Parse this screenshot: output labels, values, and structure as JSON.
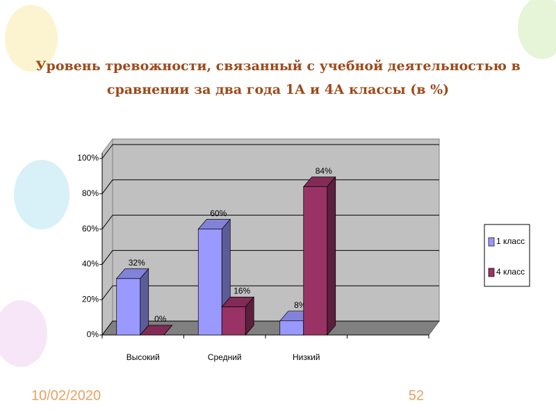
{
  "chart_data": {
    "type": "bar3d",
    "title": "Уровень тревожности,  связанный с учебной деятельностью в сравнении за два года 1А и 4А классы (в %)",
    "categories": [
      "Высокий",
      "Средний",
      "Низкий",
      null
    ],
    "series": [
      {
        "name": "1 класс",
        "color": "#9999ff",
        "values": [
          32,
          60,
          8,
          null
        ],
        "value_labels": [
          "32%",
          "60%",
          "8%",
          null
        ]
      },
      {
        "name": "4 класс",
        "color": "#993366",
        "values": [
          0,
          16,
          84,
          null
        ],
        "value_labels": [
          "0%",
          "16%",
          "84%",
          null
        ]
      }
    ],
    "ylim": [
      0,
      100
    ],
    "yticks": [
      {
        "value": 0,
        "label": "0%"
      },
      {
        "value": 20,
        "label": "20%"
      },
      {
        "value": 40,
        "label": "40%"
      },
      {
        "value": 60,
        "label": "60%"
      },
      {
        "value": 80,
        "label": "80%"
      },
      {
        "value": 100,
        "label": "100%"
      }
    ],
    "grid": true,
    "legend": "right"
  },
  "footer": {
    "date": "10/02/2020",
    "page": "52"
  }
}
